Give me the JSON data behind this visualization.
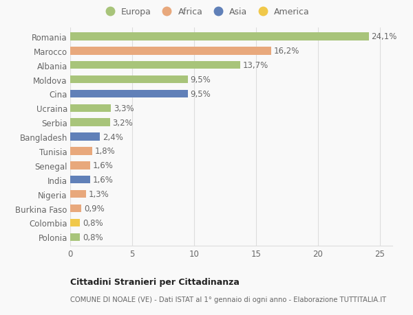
{
  "categories": [
    "Romania",
    "Marocco",
    "Albania",
    "Moldova",
    "Cina",
    "Ucraina",
    "Serbia",
    "Bangladesh",
    "Tunisia",
    "Senegal",
    "India",
    "Nigeria",
    "Burkina Faso",
    "Colombia",
    "Polonia"
  ],
  "values": [
    24.1,
    16.2,
    13.7,
    9.5,
    9.5,
    3.3,
    3.2,
    2.4,
    1.8,
    1.6,
    1.6,
    1.3,
    0.9,
    0.8,
    0.8
  ],
  "labels": [
    "24,1%",
    "16,2%",
    "13,7%",
    "9,5%",
    "9,5%",
    "3,3%",
    "3,2%",
    "2,4%",
    "1,8%",
    "1,6%",
    "1,6%",
    "1,3%",
    "0,9%",
    "0,8%",
    "0,8%"
  ],
  "colors": [
    "#a8c47a",
    "#e8a87c",
    "#a8c47a",
    "#a8c47a",
    "#6080b8",
    "#a8c47a",
    "#a8c47a",
    "#6080b8",
    "#e8a87c",
    "#e8a87c",
    "#6080b8",
    "#e8a87c",
    "#e8a87c",
    "#f0c84a",
    "#a8c47a"
  ],
  "legend_labels": [
    "Europa",
    "Africa",
    "Asia",
    "America"
  ],
  "legend_colors": [
    "#a8c47a",
    "#e8a87c",
    "#6080b8",
    "#f0c84a"
  ],
  "title1": "Cittadini Stranieri per Cittadinanza",
  "title2": "COMUNE DI NOALE (VE) - Dati ISTAT al 1° gennaio di ogni anno - Elaborazione TUTTITALIA.IT",
  "xlim": [
    0,
    26
  ],
  "xticks": [
    0,
    5,
    10,
    15,
    20,
    25
  ],
  "background_color": "#f9f9f9",
  "grid_color": "#dddddd",
  "bar_height": 0.55,
  "label_fontsize": 8.5,
  "ytick_fontsize": 8.5,
  "xtick_fontsize": 8.5
}
